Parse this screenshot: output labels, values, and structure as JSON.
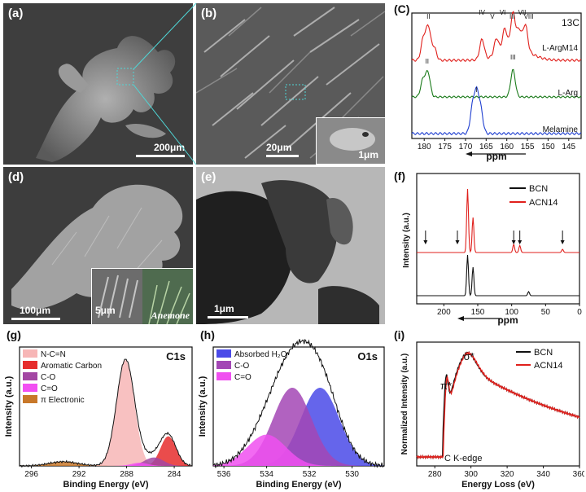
{
  "panels": {
    "a": {
      "tag": "(a)",
      "scale": "200μm"
    },
    "b": {
      "tag": "(b)",
      "scale": "20μm",
      "inset_scale": "1μm"
    },
    "d": {
      "tag": "(d)",
      "scale": "100μm",
      "inset_scale": "5μm",
      "inset_caption": "Anemone"
    },
    "e": {
      "tag": "(e)",
      "scale": "1μm"
    }
  },
  "colors": {
    "red": "#e0201c",
    "green": "#1a7a1a",
    "blue": "#1f3fd0",
    "black": "#111111"
  },
  "chart_data": [
    {
      "panel": "c",
      "tag": "(C)",
      "type": "line",
      "title": "13C",
      "xlabel": "ppm",
      "xlim": [
        183,
        142
      ],
      "x_reversed": true,
      "xticks": [
        180,
        175,
        170,
        165,
        160,
        155,
        150,
        145
      ],
      "series": [
        {
          "name": "L-ArgM14",
          "color": "#e0201c",
          "peaks": [
            {
              "x": 180.2,
              "h": 0.6
            },
            {
              "x": 179.0,
              "h": 0.9
            },
            {
              "x": 177.6,
              "h": 0.35
            },
            {
              "x": 166.0,
              "h": 0.55
            },
            {
              "x": 162.5,
              "h": 0.45
            },
            {
              "x": 160.5,
              "h": 0.6
            },
            {
              "x": 158.5,
              "h": 0.95
            },
            {
              "x": 157.0,
              "h": 0.5
            },
            {
              "x": 155.5,
              "h": 0.7
            }
          ],
          "peak_labels": [
            {
              "x": 179.0,
              "label": "II"
            },
            {
              "x": 166.0,
              "label": "IV"
            },
            {
              "x": 163.5,
              "label": "V"
            },
            {
              "x": 161.0,
              "label": "VI"
            },
            {
              "x": 158.7,
              "label": "III"
            },
            {
              "x": 156.3,
              "label": "VII"
            },
            {
              "x": 154.7,
              "label": "VIII"
            }
          ]
        },
        {
          "name": "L-Arg",
          "color": "#1a7a1a",
          "peaks": [
            {
              "x": 180.3,
              "h": 0.6
            },
            {
              "x": 179.1,
              "h": 0.85
            },
            {
              "x": 158.5,
              "h": 0.95
            }
          ],
          "peak_labels": [
            {
              "x": 179.3,
              "label": "II"
            },
            {
              "x": 158.5,
              "label": "III"
            }
          ]
        },
        {
          "name": "Melamine",
          "color": "#1f3fd0",
          "peaks": [
            {
              "x": 168.3,
              "h": 0.7
            },
            {
              "x": 167.3,
              "h": 1.0
            },
            {
              "x": 166.3,
              "h": 0.6
            }
          ],
          "peak_labels": [
            {
              "x": 167.3,
              "label": "I"
            }
          ]
        }
      ]
    },
    {
      "panel": "f",
      "tag": "(f)",
      "type": "line",
      "xlabel": "ppm",
      "ylabel": "Intensity (a.u.)",
      "xlim": [
        240,
        0
      ],
      "x_reversed": true,
      "xticks": [
        200,
        150,
        100,
        50,
        0
      ],
      "legend": "top-right",
      "series": [
        {
          "name": "BCN",
          "color": "#111111",
          "peaks": [
            {
              "x": 165,
              "h": 1.0
            },
            {
              "x": 157,
              "h": 0.7
            },
            {
              "x": 75,
              "h": 0.1
            }
          ]
        },
        {
          "name": "ACN14",
          "color": "#e0201c",
          "peaks": [
            {
              "x": 165,
              "h": 1.0
            },
            {
              "x": 157,
              "h": 0.55
            },
            {
              "x": 97,
              "h": 0.13
            },
            {
              "x": 88,
              "h": 0.11
            },
            {
              "x": 25,
              "h": 0.05
            }
          ]
        }
      ],
      "arrows_x": [
        227,
        180,
        97,
        88,
        25
      ]
    },
    {
      "panel": "g",
      "tag": "(g)",
      "type": "area",
      "title": "C1s",
      "xlabel": "Binding Energy (eV)",
      "ylabel": "Intensity (a.u.)",
      "xlim": [
        297,
        282.5
      ],
      "x_reversed": true,
      "xticks": [
        296,
        292,
        288,
        284
      ],
      "legend": "top-left",
      "series": [
        {
          "name": "N-C=N",
          "color": "#f7b6b6",
          "center": 288.1,
          "height": 1.0,
          "sigma": 0.75
        },
        {
          "name": "Aromatic Carbon",
          "color": "#e62d2d",
          "center": 284.5,
          "height": 0.28,
          "sigma": 0.65
        },
        {
          "name": "C-O",
          "color": "#a347a3",
          "center": 285.7,
          "height": 0.08,
          "sigma": 0.8
        },
        {
          "name": "C=O",
          "color": "#f24ff2",
          "center": 286.9,
          "height": 0.03,
          "sigma": 0.7
        },
        {
          "name": "π Electronic",
          "color": "#c8782a",
          "center": 293.3,
          "height": 0.04,
          "sigma": 1.2
        }
      ]
    },
    {
      "panel": "h",
      "tag": "(h)",
      "type": "area",
      "title": "O1s",
      "xlabel": "Binding Energy (eV)",
      "ylabel": "Intensity (a.u.)",
      "xlim": [
        536.5,
        528.5
      ],
      "x_reversed": true,
      "xticks": [
        536,
        534,
        532,
        530
      ],
      "legend": "top-left",
      "series": [
        {
          "name": "Absorbed H₂O",
          "color": "#4a4ae8",
          "center": 531.5,
          "height": 0.8,
          "sigma": 0.9
        },
        {
          "name": "C-O",
          "color": "#a347b5",
          "center": 532.8,
          "height": 0.8,
          "sigma": 0.9
        },
        {
          "name": "C=O",
          "color": "#f050f0",
          "center": 534.0,
          "height": 0.32,
          "sigma": 0.9
        }
      ]
    },
    {
      "panel": "i",
      "tag": "(i)",
      "type": "line",
      "xlabel": "Energy Loss (eV)",
      "ylabel": "Normalized Intensity (a.u.)",
      "xlim": [
        270,
        360
      ],
      "xticks": [
        280,
        300,
        320,
        340,
        360
      ],
      "legend": "top-right",
      "annotations": [
        {
          "text": "π*",
          "x": 288
        },
        {
          "text": "σ*",
          "x": 298
        },
        {
          "text": "C K-edge",
          "x": 295
        }
      ],
      "series": [
        {
          "name": "BCN",
          "color": "#111111"
        },
        {
          "name": "ACN14",
          "color": "#e0201c"
        }
      ]
    }
  ]
}
